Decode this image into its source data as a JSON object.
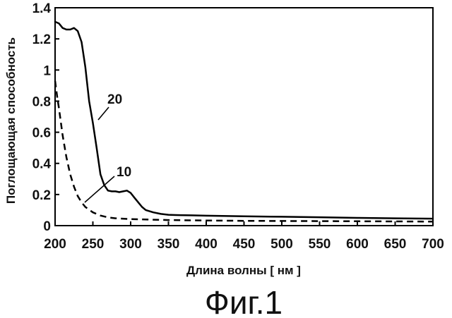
{
  "chart_data": {
    "type": "line",
    "title": "",
    "xlabel": "Длина волны [ нм ]",
    "ylabel": "Поглощающая способность",
    "xlim": [
      200,
      700
    ],
    "ylim": [
      0,
      1.4
    ],
    "x_ticks": [
      "200",
      "250",
      "300",
      "350",
      "400",
      "450",
      "500",
      "550",
      "600",
      "650",
      "700"
    ],
    "y_ticks": [
      "0",
      "0.2",
      "0.4",
      "0.6",
      "0.8",
      "1",
      "1.2",
      "1.4"
    ],
    "series": [
      {
        "name": "20",
        "line_style": "solid",
        "color": "#000000",
        "x": [
          200,
          205,
          210,
          215,
          220,
          225,
          230,
          235,
          240,
          245,
          250,
          255,
          260,
          265,
          270,
          275,
          280,
          285,
          290,
          295,
          300,
          305,
          310,
          315,
          320,
          330,
          340,
          350,
          360,
          380,
          400,
          450,
          500,
          550,
          600,
          650,
          700
        ],
        "y": [
          1.31,
          1.3,
          1.27,
          1.26,
          1.26,
          1.27,
          1.25,
          1.18,
          1.02,
          0.8,
          0.66,
          0.5,
          0.33,
          0.26,
          0.225,
          0.22,
          0.22,
          0.215,
          0.22,
          0.225,
          0.21,
          0.18,
          0.15,
          0.12,
          0.1,
          0.085,
          0.075,
          0.07,
          0.068,
          0.066,
          0.064,
          0.06,
          0.057,
          0.054,
          0.05,
          0.047,
          0.045
        ]
      },
      {
        "name": "10",
        "line_style": "dashed",
        "color": "#000000",
        "x": [
          200,
          203,
          205,
          210,
          215,
          220,
          225,
          230,
          235,
          240,
          250,
          260,
          270,
          280,
          300,
          330,
          350,
          400,
          450,
          500,
          550,
          600,
          650,
          700
        ],
        "y": [
          0.93,
          0.82,
          0.76,
          0.58,
          0.44,
          0.33,
          0.25,
          0.19,
          0.15,
          0.12,
          0.085,
          0.065,
          0.053,
          0.047,
          0.042,
          0.038,
          0.036,
          0.033,
          0.031,
          0.03,
          0.029,
          0.028,
          0.027,
          0.026
        ]
      }
    ],
    "annotations": [
      {
        "text": "20",
        "series": "20"
      },
      {
        "text": "10",
        "series": "10"
      }
    ],
    "caption": "Фиг.1",
    "grid": false
  }
}
